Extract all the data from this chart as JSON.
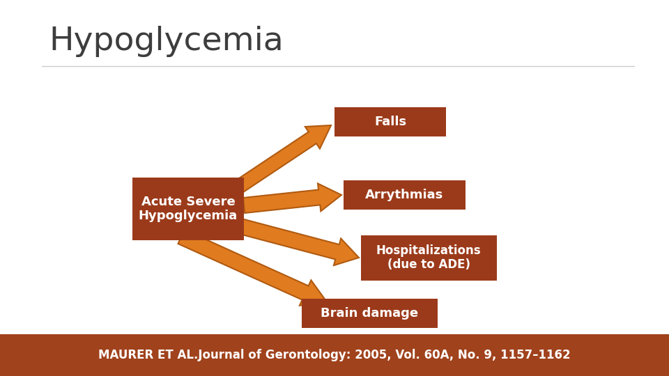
{
  "title": "Hypoglycemia",
  "title_fontsize": 34,
  "title_color": "#3d3d3d",
  "background_color": "#ffffff",
  "box_color": "#9B3A1A",
  "arrow_color_fill": "#E07B20",
  "arrow_color_edge": "#B05A10",
  "text_color": "#ffffff",
  "footer_bg": "#A0421C",
  "footer_text": "MAURER ET AL.Journal of Gerontology: 2005, Vol. 60A, No. 9, 1157–1162",
  "footer_fontsize": 12,
  "source_box_label": "Acute Severe\nHypoglycemia",
  "outcomes": [
    "Falls",
    "Arrythmias",
    "Hospitalizations\n(due to ADE)",
    "Brain damage"
  ]
}
